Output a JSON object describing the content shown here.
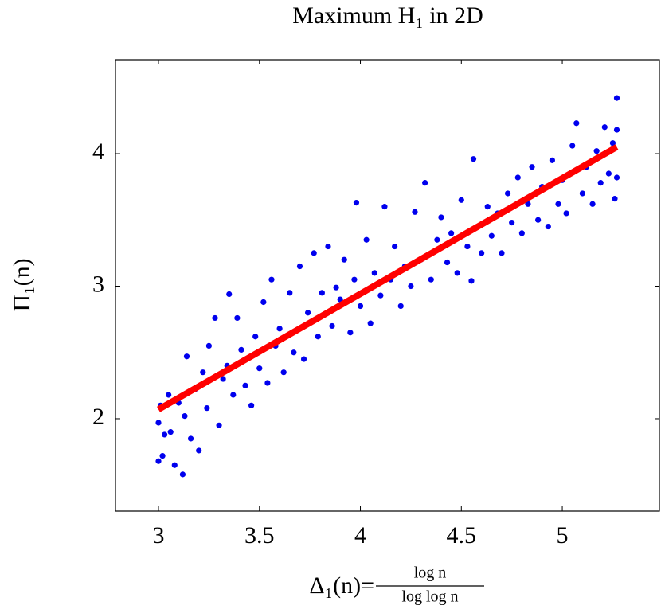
{
  "chart_data": {
    "type": "scatter",
    "title": "Maximum H₁ in 2D",
    "xlabel": "Δ₁(n)=",
    "xlabel_numerator": "log n",
    "xlabel_denominator": "log log n",
    "ylabel": "Π₁(n)",
    "xlim": [
      2.787,
      5.481
    ],
    "ylim": [
      1.303,
      4.709
    ],
    "xticks": [
      3,
      3.5,
      4,
      4.5,
      5
    ],
    "yticks": [
      2,
      3,
      4
    ],
    "grid": false,
    "series": [
      {
        "type": "scatter",
        "color": "#0000ee",
        "x": [
          3.0,
          3.0,
          3.01,
          3.02,
          3.03,
          3.05,
          3.06,
          3.08,
          3.1,
          3.12,
          3.13,
          3.14,
          3.16,
          3.18,
          3.2,
          3.22,
          3.24,
          3.25,
          3.28,
          3.3,
          3.32,
          3.34,
          3.35,
          3.37,
          3.39,
          3.41,
          3.43,
          3.46,
          3.48,
          3.5,
          3.52,
          3.54,
          3.56,
          3.58,
          3.6,
          3.62,
          3.65,
          3.67,
          3.7,
          3.72,
          3.74,
          3.77,
          3.79,
          3.81,
          3.84,
          3.86,
          3.88,
          3.9,
          3.92,
          3.95,
          3.97,
          3.98,
          4.0,
          4.03,
          4.05,
          4.07,
          4.1,
          4.12,
          4.15,
          4.17,
          4.2,
          4.22,
          4.25,
          4.27,
          4.3,
          4.32,
          4.35,
          4.38,
          4.4,
          4.43,
          4.45,
          4.48,
          4.5,
          4.53,
          4.55,
          4.56,
          4.58,
          4.6,
          4.63,
          4.65,
          4.68,
          4.7,
          4.73,
          4.75,
          4.78,
          4.8,
          4.83,
          4.85,
          4.88,
          4.9,
          4.93,
          4.95,
          4.98,
          5.0,
          5.02,
          5.05,
          5.07,
          5.1,
          5.12,
          5.15,
          5.17,
          5.19,
          5.21,
          5.23,
          5.25,
          5.26,
          5.27,
          5.27,
          5.27
        ],
        "values": [
          1.68,
          1.97,
          2.1,
          1.72,
          1.88,
          2.18,
          1.9,
          1.65,
          2.12,
          1.58,
          2.02,
          2.47,
          1.85,
          2.22,
          1.76,
          2.35,
          2.08,
          2.55,
          2.76,
          1.95,
          2.3,
          2.4,
          2.94,
          2.18,
          2.76,
          2.52,
          2.25,
          2.1,
          2.62,
          2.38,
          2.88,
          2.27,
          3.05,
          2.55,
          2.68,
          2.35,
          2.95,
          2.5,
          3.15,
          2.45,
          2.8,
          3.25,
          2.62,
          2.95,
          3.3,
          2.7,
          2.99,
          2.9,
          3.2,
          2.65,
          3.05,
          3.63,
          2.85,
          3.35,
          2.72,
          3.1,
          2.93,
          3.6,
          3.05,
          3.3,
          2.85,
          3.15,
          3.0,
          3.56,
          3.2,
          3.78,
          3.05,
          3.35,
          3.52,
          3.18,
          3.4,
          3.1,
          3.65,
          3.3,
          3.04,
          3.96,
          3.45,
          3.25,
          3.6,
          3.38,
          3.55,
          3.25,
          3.7,
          3.48,
          3.82,
          3.4,
          3.62,
          3.9,
          3.5,
          3.75,
          3.45,
          3.95,
          3.62,
          3.8,
          3.55,
          4.06,
          4.23,
          3.7,
          3.9,
          3.62,
          4.02,
          3.78,
          4.2,
          3.85,
          4.08,
          3.66,
          3.82,
          4.18,
          4.42
        ]
      },
      {
        "type": "line",
        "color": "#ff0000",
        "x": [
          3.0,
          5.27
        ],
        "values": [
          2.07,
          4.05
        ]
      }
    ]
  }
}
